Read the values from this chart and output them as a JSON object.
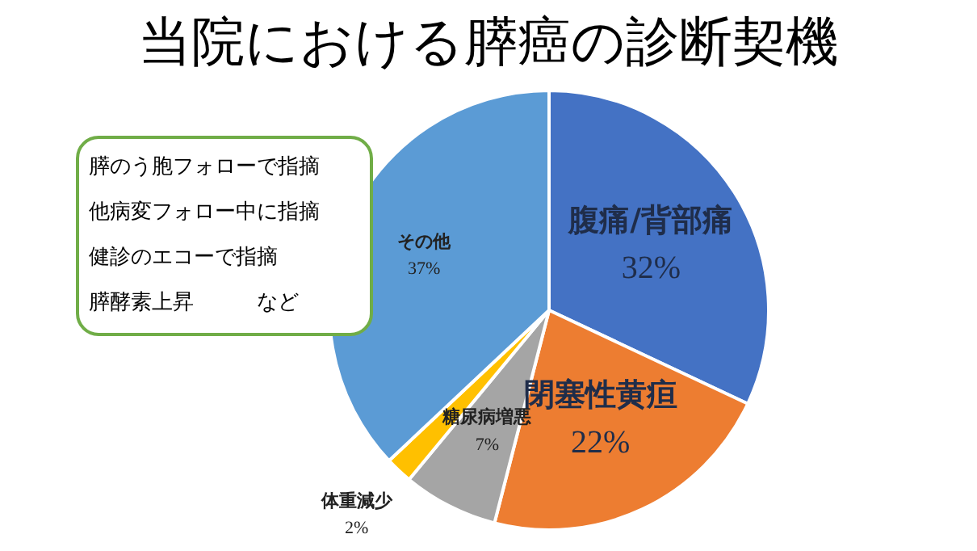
{
  "chart_data": {
    "type": "pie",
    "title": "当院における膵癌の診断契機",
    "categories": [
      "腹痛/背部痛",
      "閉塞性黄疸",
      "糖尿病増悪",
      "体重減少",
      "その他"
    ],
    "values": [
      32,
      22,
      7,
      2,
      37
    ],
    "colors": [
      "#4472c4",
      "#ed7d31",
      "#a5a5a5",
      "#ffc000",
      "#5b9bd5"
    ],
    "value_labels": [
      "32%",
      "22%",
      "7%",
      "2%",
      "37%"
    ],
    "annotations": [
      "膵のう胞フォローで指摘",
      "他病変フォロー中に指摘",
      "健診のエコーで指摘",
      "膵酵素上昇　　　など"
    ]
  }
}
